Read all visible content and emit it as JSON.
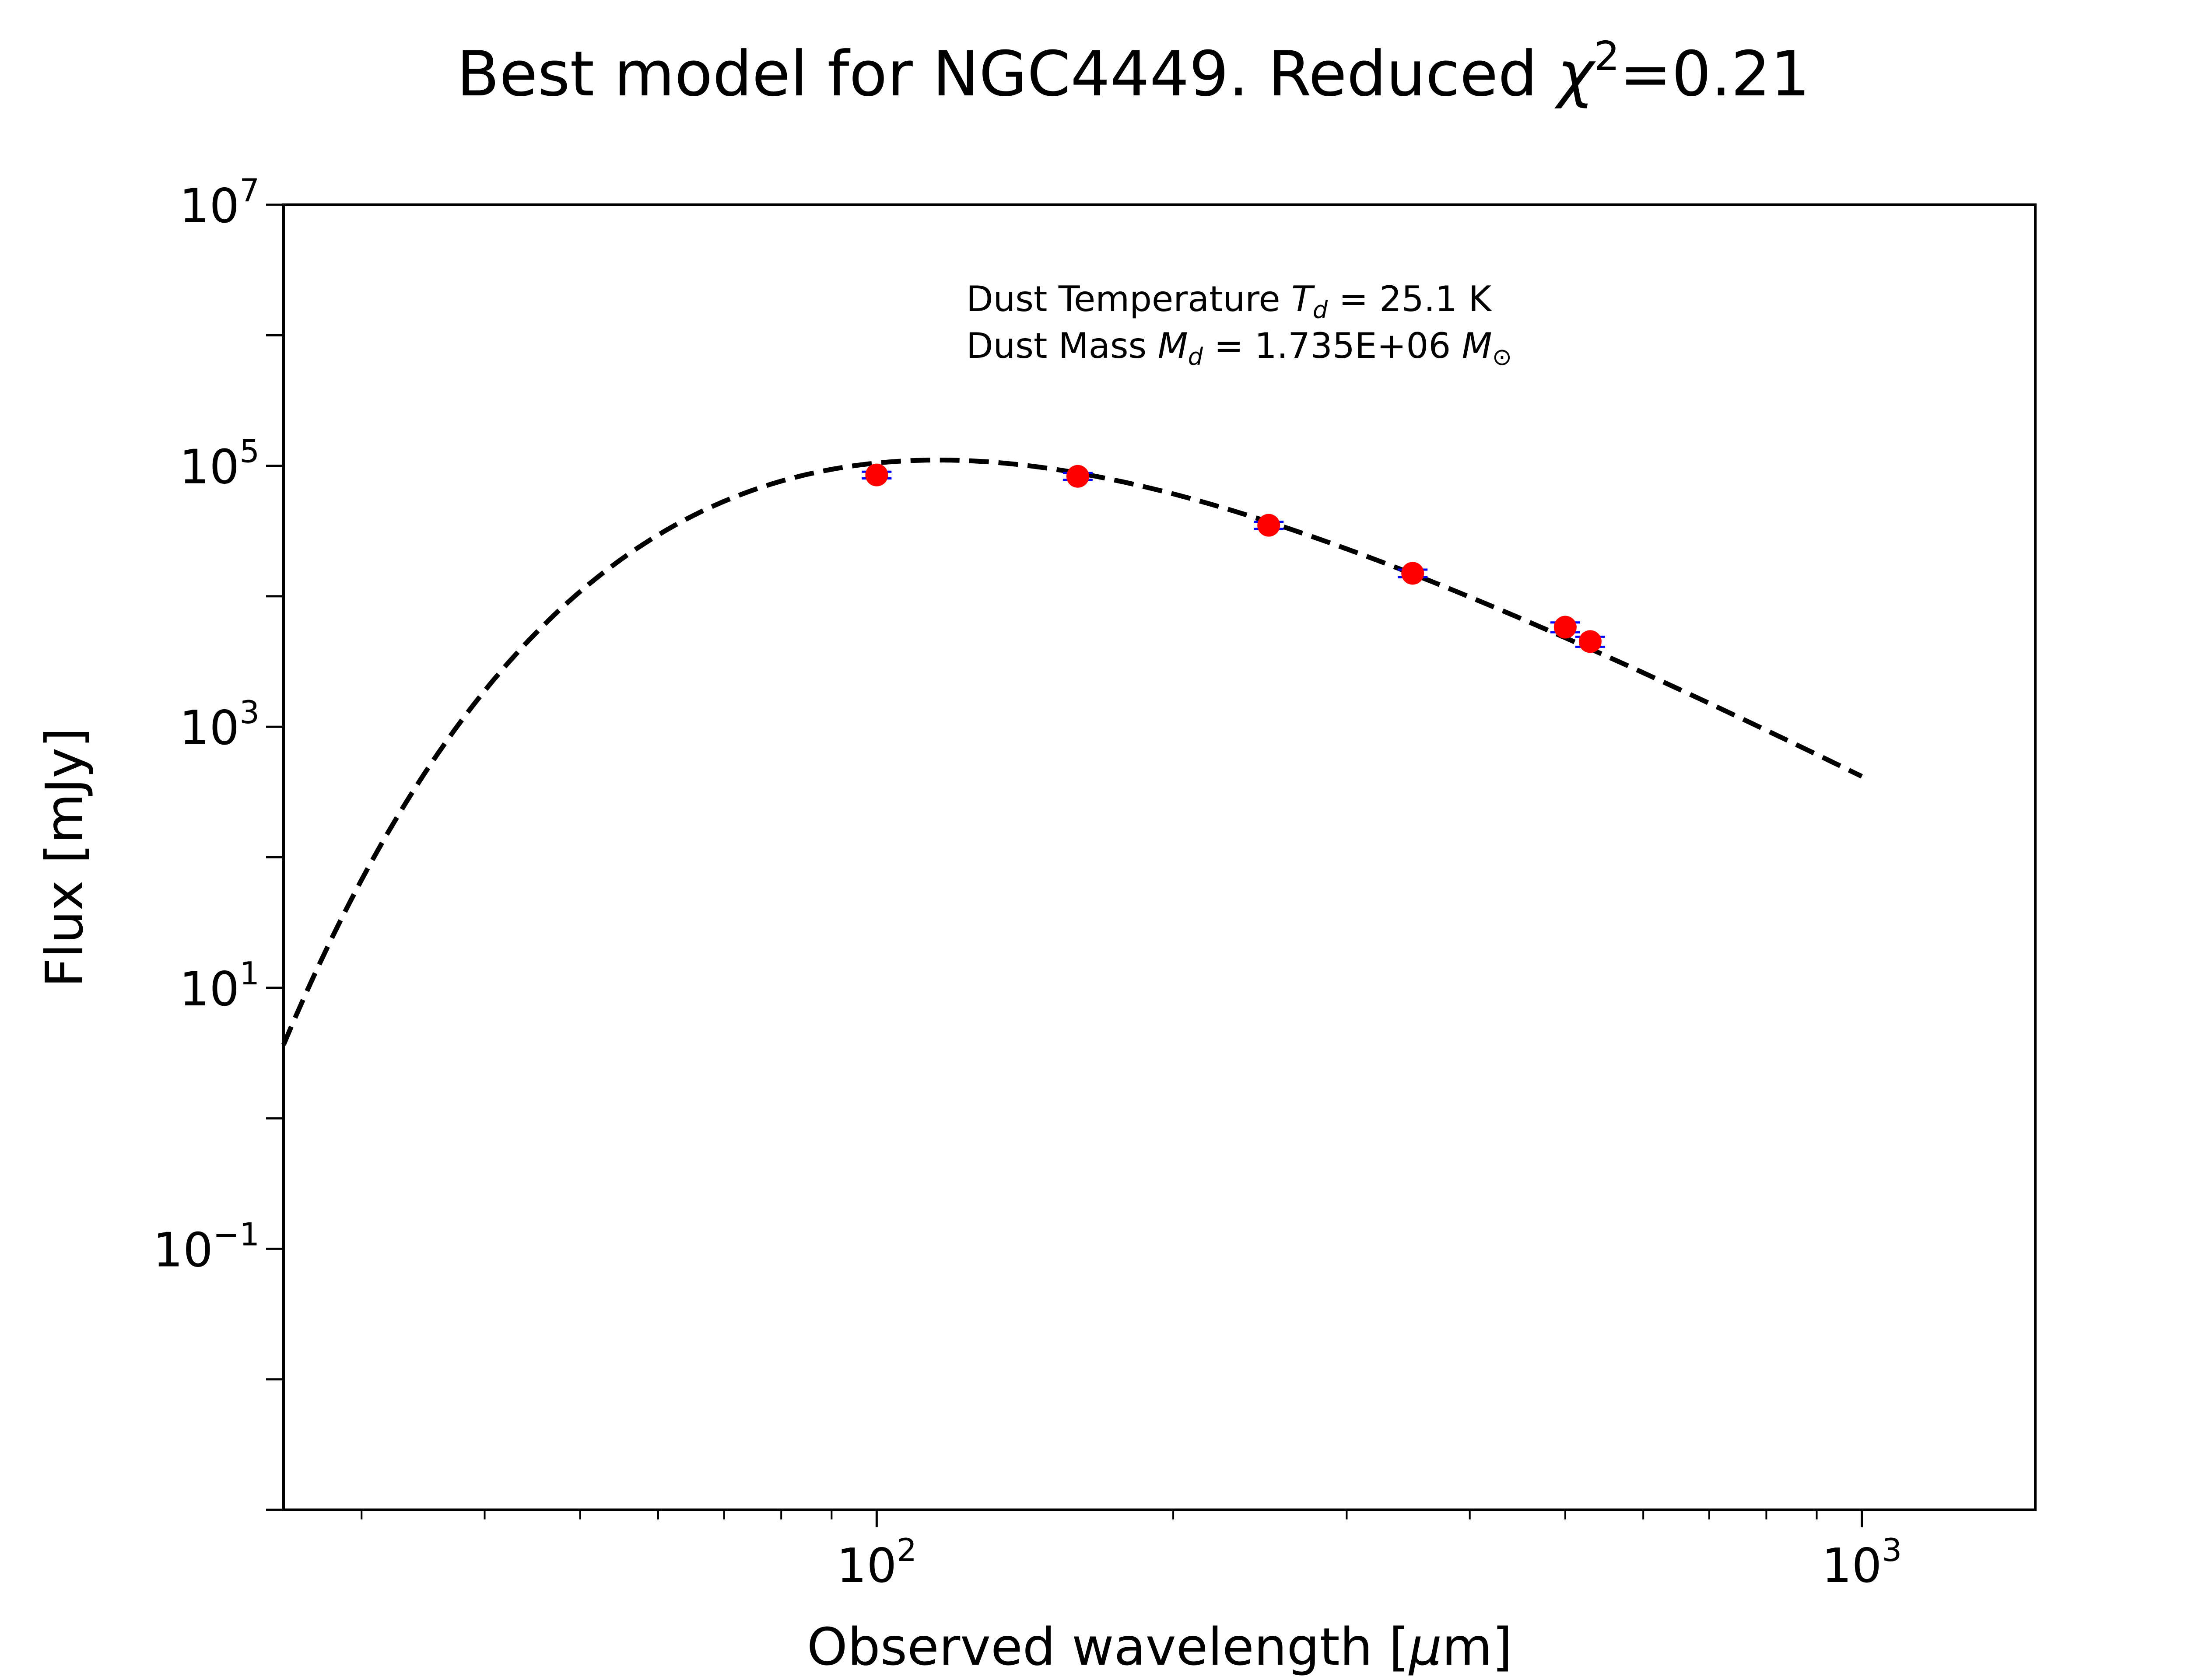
{
  "title": {
    "prefix": "Best model for NGC4449. Reduced ",
    "symbol": "χ",
    "power": "2",
    "suffix": "=0.21"
  },
  "xlabel": {
    "text": "Observed wavelength [",
    "unit": "μ",
    "unit_rest": "m]"
  },
  "ylabel": "Flux [mJy]",
  "annotation": {
    "line1_prefix": "Dust Temperature ",
    "line1_symbol": "T",
    "line1_sub": "d",
    "line1_value": " = 25.1 K",
    "line2_prefix": "Dust Mass ",
    "line2_symbol": "M",
    "line2_sub": "d",
    "line2_value": " = 1.735E+06 ",
    "line2_unit_symbol": "M",
    "line2_unit_sub": "⊙"
  },
  "colors": {
    "point": "#ff0000",
    "errorbar": "#0000ff",
    "model": "#000000",
    "axes": "#000000"
  },
  "chart_data": {
    "type": "scatter",
    "x_scale": "log",
    "y_scale": "log",
    "xlim": [
      25,
      1500
    ],
    "ylim": [
      0.001,
      10000000
    ],
    "grid": false,
    "x_ticks": [
      {
        "value": 100,
        "base": "10",
        "exp": "2"
      },
      {
        "value": 1000,
        "base": "10",
        "exp": "3"
      }
    ],
    "y_ticks": [
      {
        "value": 0.1,
        "base": "10",
        "exp": "−1"
      },
      {
        "value": 10,
        "base": "10",
        "exp": "1"
      },
      {
        "value": 1000,
        "base": "10",
        "exp": "3"
      },
      {
        "value": 100000,
        "base": "10",
        "exp": "5"
      },
      {
        "value": 10000000,
        "base": "10",
        "exp": "7"
      }
    ],
    "series": [
      {
        "kind": "points_with_errorbars",
        "x": [
          100,
          160,
          250,
          350,
          500,
          530
        ],
        "y": [
          85000,
          83000,
          35000,
          15000,
          5800,
          4500
        ],
        "yerr": [
          5000,
          5000,
          2200,
          1000,
          500,
          400
        ]
      },
      {
        "kind": "dashed_line",
        "model": "modified_blackbody",
        "temperature_K": 25.1,
        "beta": 2,
        "x_range": [
          25,
          1000
        ]
      }
    ]
  }
}
